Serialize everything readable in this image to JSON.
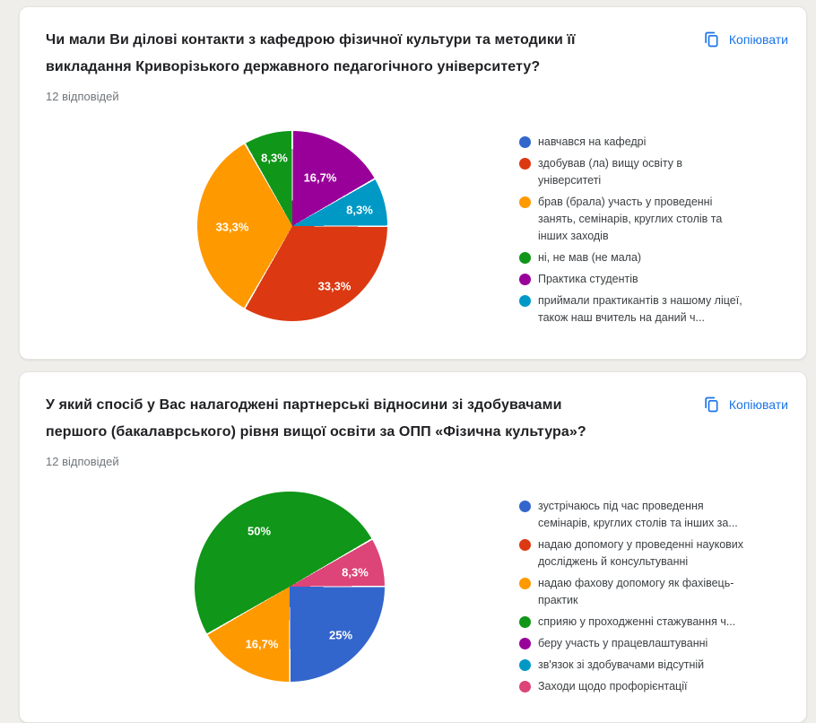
{
  "page": {
    "background_color": "#efeeea"
  },
  "palette": {
    "blue": "#3366CC",
    "red": "#DC3912",
    "orange": "#FF9900",
    "green": "#109618",
    "purple": "#990099",
    "cyan": "#0099C6",
    "pink": "#DD4477",
    "link_blue": "#1a73e8"
  },
  "cards": [
    {
      "title": "Чи мали Ви ділові контакти з кафедрою фізичної культури та методики її викладання  Криворізького державного педагогічного університету?",
      "responses": "12 відповідей",
      "copy_label": "Копіювати",
      "legend": [
        {
          "label": "навчався на кафедрі",
          "color": "#3366CC"
        },
        {
          "label": "здобував (ла) вищу освіту в університеті",
          "color": "#DC3912"
        },
        {
          "label": "брав (брала) участь у проведенні занять, семінарів, круглих столів та інших заходів",
          "color": "#FF9900"
        },
        {
          "label": "ні, не мав (не мала)",
          "color": "#109618"
        },
        {
          "label": "Практика студентів",
          "color": "#990099"
        },
        {
          "label": "приймали практикантів з нашому ліцеї, також наш вчитель на даний ч...",
          "color": "#0099C6"
        }
      ],
      "pie": {
        "start_deg": 0,
        "slices": [
          {
            "category": "Практика студентів",
            "pct": 16.7,
            "display": "16,7%",
            "color": "#990099"
          },
          {
            "category": "приймали практикантів з нашому ліцеї, також наш вчитель на даний ч...",
            "pct": 8.3,
            "display": "8,3%",
            "color": "#0099C6"
          },
          {
            "category": "здобував (ла) вищу освіту в університеті",
            "pct": 33.3,
            "display": "33,3%",
            "color": "#DC3912"
          },
          {
            "category": "брав (брала) участь у проведенні занять, семінарів, круглих столів та інших заходів",
            "pct": 33.3,
            "display": "33,3%",
            "color": "#FF9900"
          },
          {
            "category": "ні, не мав (не мала)",
            "pct": 8.3,
            "display": "8,3%",
            "color": "#109618"
          }
        ]
      }
    },
    {
      "title": "У який спосіб у Вас налагоджені партнерські відносини зі здобувачами першого (бакалаврського) рівня вищої освіти за ОПП «Фізична культура»?",
      "responses": "12 відповідей",
      "copy_label": "Копіювати",
      "legend": [
        {
          "label": "зустрічаюсь під час проведення семінарів, круглих столів та інших за...",
          "color": "#3366CC"
        },
        {
          "label": "надаю допомогу у проведенні наукових досліджень й консультуванні",
          "color": "#DC3912"
        },
        {
          "label": "надаю фахову допомогу як фахівець-практик",
          "color": "#FF9900"
        },
        {
          "label": "сприяю у проходженні стажування ч...",
          "color": "#109618"
        },
        {
          "label": "беру участь у працевлаштуванні",
          "color": "#990099"
        },
        {
          "label": "зв'язок зі здобувачами відсутній",
          "color": "#0099C6"
        },
        {
          "label": "Заходи щодо профорієнтації",
          "color": "#DD4477"
        }
      ],
      "pie": {
        "start_deg": 240,
        "slices": [
          {
            "category": "сприяю у проходженні стажування ч...",
            "pct": 50,
            "display": "50%",
            "color": "#109618"
          },
          {
            "category": "Заходи щодо профорієнтації",
            "pct": 8.3,
            "display": "8,3%",
            "color": "#DD4477"
          },
          {
            "category": "зустрічаюсь під час проведення семінарів, круглих столів та інших за...",
            "pct": 25,
            "display": "25%",
            "color": "#3366CC"
          },
          {
            "category": "надаю фахову допомогу як фахівець-практик",
            "pct": 16.7,
            "display": "16,7%",
            "color": "#FF9900"
          }
        ]
      }
    }
  ],
  "chart_data": [
    {
      "type": "pie",
      "title": "Чи мали Ви ділові контакти з кафедрою фізичної культури та методики її викладання Криворізького державного педагогічного університету?",
      "subtitle": "12 відповідей",
      "legend_position": "right",
      "categories": [
        "навчався на кафедрі",
        "здобував (ла) вищу освіту в університеті",
        "брав (брала) участь у проведенні занять, семінарів, круглих столів та інших заходів",
        "ні, не мав (не мала)",
        "Практика студентів",
        "приймали практикантів з нашому ліцеї, також наш вчитель на даний ч..."
      ],
      "values_pct": [
        0,
        33.3,
        33.3,
        8.3,
        16.7,
        8.3
      ],
      "colors": [
        "#3366CC",
        "#DC3912",
        "#FF9900",
        "#109618",
        "#990099",
        "#0099C6"
      ],
      "data_labels": [
        "",
        "33,3%",
        "33,3%",
        "8,3%",
        "16,7%",
        "8,3%"
      ]
    },
    {
      "type": "pie",
      "title": "У який спосіб у Вас налагоджені партнерські відносини зі здобувачами першого (бакалаврського) рівня вищої освіти за ОПП «Фізична культура»?",
      "subtitle": "12 відповідей",
      "legend_position": "right",
      "categories": [
        "зустрічаюсь під час проведення семінарів, круглих столів та інших за...",
        "надаю допомогу у проведенні наукових досліджень й консультуванні",
        "надаю фахову допомогу як фахівець-практик",
        "сприяю у проходженні стажування ч...",
        "беру участь у працевлаштуванні",
        "зв'язок зі здобувачами відсутній",
        "Заходи щодо профорієнтації"
      ],
      "values_pct": [
        25,
        0,
        16.7,
        50,
        0,
        0,
        8.3
      ],
      "colors": [
        "#3366CC",
        "#DC3912",
        "#FF9900",
        "#109618",
        "#990099",
        "#0099C6",
        "#DD4477"
      ],
      "data_labels": [
        "25%",
        "",
        "16,7%",
        "50%",
        "",
        "",
        "8,3%"
      ]
    }
  ]
}
